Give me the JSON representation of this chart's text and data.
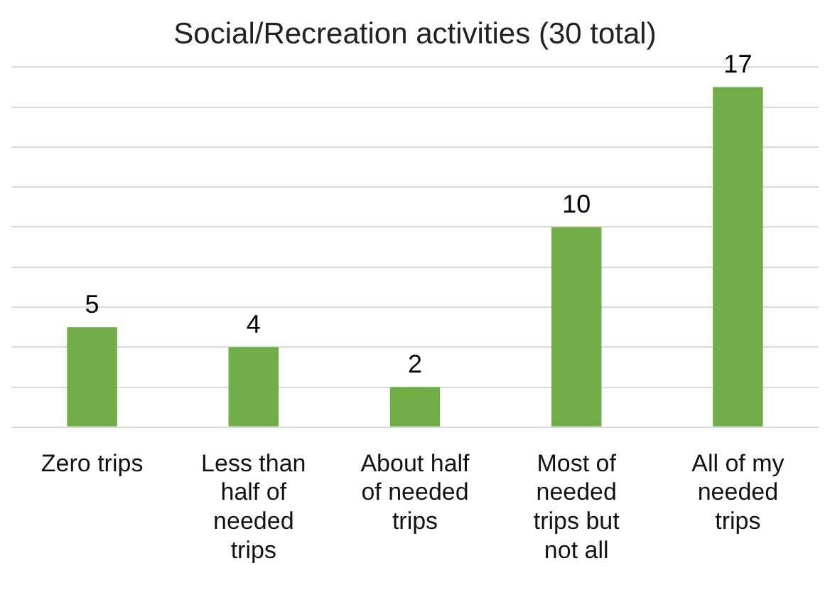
{
  "chart_data": {
    "type": "bar",
    "title": "Social/Recreation activities (30 total)",
    "categories": [
      "Zero trips",
      "Less than half of needed trips",
      "About half of needed trips",
      "Most of needed trips but not all",
      "All of my needed trips"
    ],
    "values": [
      5,
      4,
      2,
      10,
      17
    ],
    "color": "#70ad47",
    "grid": "y",
    "tick_labels": "x",
    "data_labels": true,
    "legend": false
  }
}
